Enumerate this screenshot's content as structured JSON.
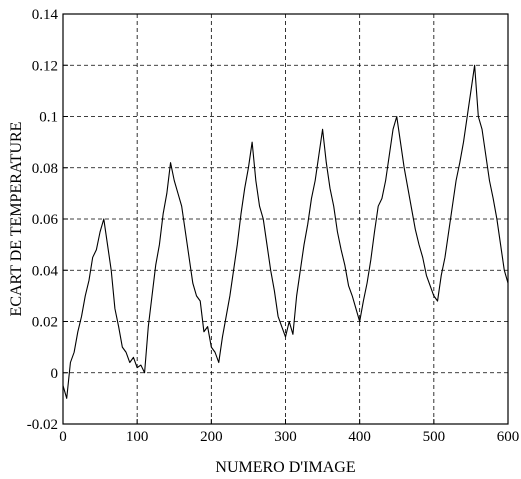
{
  "chart_data": {
    "type": "line",
    "title": "",
    "xlabel": "NUMERO D'IMAGE",
    "ylabel": "ECART DE TEMPERATURE",
    "xlim": [
      0,
      600
    ],
    "ylim": [
      -0.02,
      0.14
    ],
    "xticks": [
      0,
      100,
      200,
      300,
      400,
      500,
      600
    ],
    "yticks": [
      -0.02,
      0,
      0.02,
      0.04,
      0.06,
      0.08,
      0.1,
      0.12,
      0.14
    ],
    "xtick_labels": [
      "0",
      "100",
      "200",
      "300",
      "400",
      "500",
      "600"
    ],
    "ytick_labels": [
      "-0.02",
      "0",
      "0.02",
      "0.04",
      "0.06",
      "0.08",
      "0.1",
      "0.12",
      "0.14"
    ],
    "grid": true,
    "series": [
      {
        "x": [
          0,
          5,
          10,
          15,
          20,
          25,
          30,
          35,
          40,
          45,
          50,
          55,
          60,
          65,
          70,
          75,
          80,
          85,
          90,
          95,
          100,
          105,
          110,
          115,
          120,
          125,
          130,
          135,
          140,
          145,
          150,
          155,
          160,
          165,
          170,
          175,
          180,
          185,
          190,
          195,
          200,
          205,
          210,
          215,
          220,
          225,
          230,
          235,
          240,
          245,
          250,
          255,
          260,
          265,
          270,
          275,
          280,
          285,
          290,
          295,
          300,
          305,
          310,
          315,
          320,
          325,
          330,
          335,
          340,
          345,
          350,
          355,
          360,
          365,
          370,
          375,
          380,
          385,
          390,
          395,
          400,
          405,
          410,
          415,
          420,
          425,
          430,
          435,
          440,
          445,
          450,
          455,
          460,
          465,
          470,
          475,
          480,
          485,
          490,
          495,
          500,
          505,
          510,
          515,
          520,
          525,
          530,
          535,
          540,
          545,
          550,
          555,
          560,
          565,
          570,
          575,
          580,
          585,
          590,
          595,
          600
        ],
        "y": [
          -0.005,
          -0.01,
          0.004,
          0.008,
          0.016,
          0.022,
          0.03,
          0.036,
          0.045,
          0.048,
          0.055,
          0.06,
          0.05,
          0.04,
          0.025,
          0.018,
          0.01,
          0.008,
          0.004,
          0.006,
          0.002,
          0.003,
          0.0,
          0.018,
          0.03,
          0.042,
          0.05,
          0.062,
          0.07,
          0.082,
          0.075,
          0.07,
          0.065,
          0.055,
          0.045,
          0.035,
          0.03,
          0.028,
          0.016,
          0.018,
          0.01,
          0.008,
          0.004,
          0.014,
          0.022,
          0.03,
          0.04,
          0.05,
          0.062,
          0.072,
          0.08,
          0.09,
          0.075,
          0.065,
          0.06,
          0.05,
          0.04,
          0.032,
          0.022,
          0.018,
          0.014,
          0.02,
          0.015,
          0.03,
          0.04,
          0.05,
          0.058,
          0.068,
          0.075,
          0.085,
          0.095,
          0.082,
          0.072,
          0.065,
          0.055,
          0.048,
          0.042,
          0.034,
          0.03,
          0.025,
          0.02,
          0.028,
          0.035,
          0.044,
          0.055,
          0.065,
          0.068,
          0.075,
          0.085,
          0.095,
          0.1,
          0.09,
          0.08,
          0.072,
          0.064,
          0.056,
          0.05,
          0.045,
          0.038,
          0.034,
          0.03,
          0.028,
          0.038,
          0.045,
          0.055,
          0.065,
          0.075,
          0.082,
          0.09,
          0.1,
          0.11,
          0.12,
          0.1,
          0.095,
          0.085,
          0.075,
          0.068,
          0.06,
          0.05,
          0.04,
          0.035
        ]
      }
    ]
  }
}
